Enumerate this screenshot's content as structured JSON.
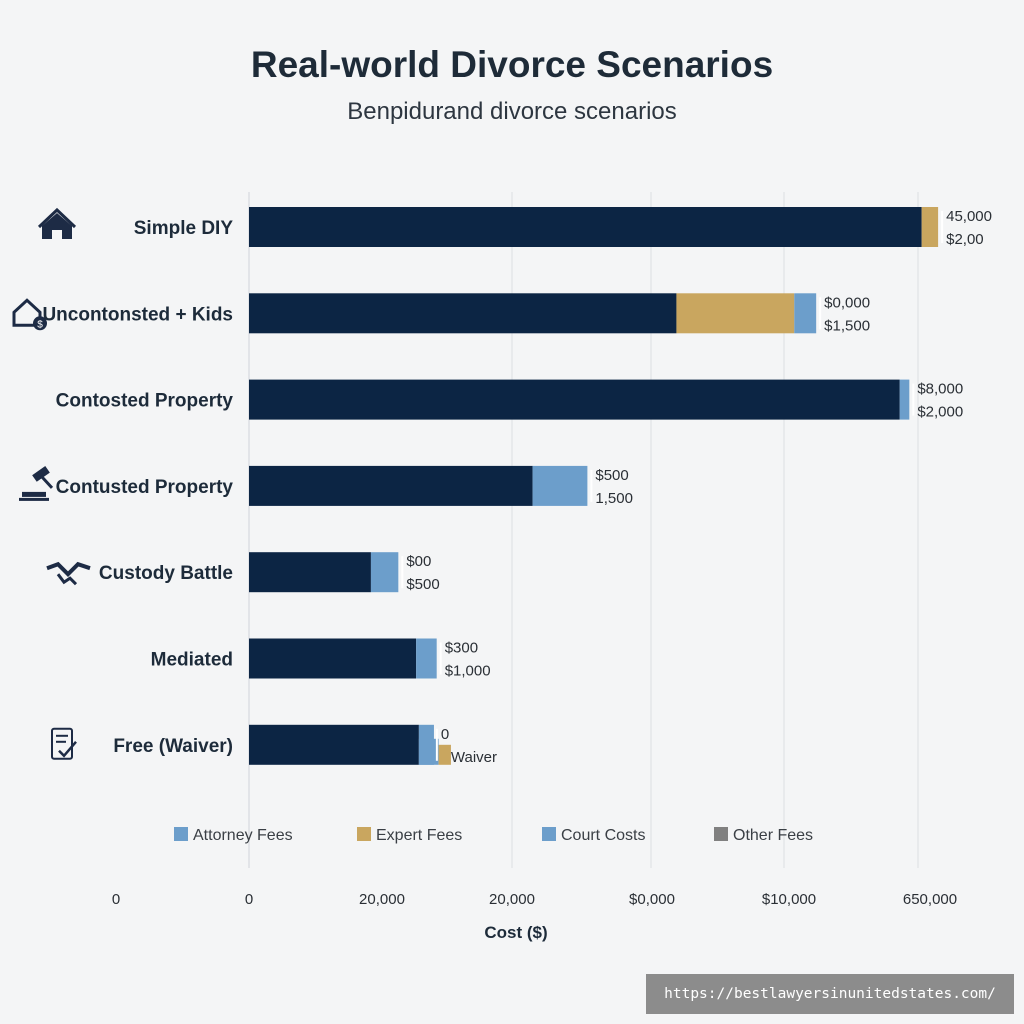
{
  "title": "Real-world Divorce Scenarios",
  "subtitle": "Benpidurand divorce scenarios",
  "watermark": "https://bestlawyersinunitedstates.com/",
  "colors": {
    "attorney": "#0c2544",
    "expert": "#c9a65f",
    "court": "#6c9ecb",
    "other": "#808080",
    "legend_attorney": "#6c9ecb",
    "grid": "#dcdfe3"
  },
  "chart_data": {
    "type": "bar",
    "orientation": "horizontal",
    "stacked": true,
    "title": "Real-world Divorce Scenarios",
    "subtitle": "Benpidurand divorce scenarios",
    "xlabel": "Cost ($)",
    "x_tick_labels": [
      "0",
      "0",
      "20,000",
      "20,000",
      "$0,000",
      "$10,000",
      "650,000"
    ],
    "xlim": [
      0,
      50000
    ],
    "legend_placement": "bottom",
    "legend": [
      "Attorney Fees",
      "Expert Fees",
      "Court Costs",
      "Other Fees"
    ],
    "categories": [
      "Simple DIY",
      "Uncontonsted + Kids",
      "Contosted Property",
      "Contusted Property",
      "Custody Battle",
      "Mediated",
      "Free (Waiver)"
    ],
    "icons": [
      "house-icon",
      "house-dollar-icon",
      "",
      "gavel-icon",
      "handshake-icon",
      "",
      "checklist-icon"
    ],
    "series": [
      {
        "name": "Attorney Fees",
        "key": "attorney",
        "values": [
          49100,
          31200,
          47500,
          20700,
          8900,
          12200,
          12400
        ]
      },
      {
        "name": "Expert Fees",
        "key": "expert",
        "values": [
          1200,
          8600,
          0,
          0,
          0,
          0,
          0
        ]
      },
      {
        "name": "Court Costs",
        "key": "court",
        "values": [
          0,
          1600,
          700,
          4000,
          2000,
          1500,
          1100
        ]
      },
      {
        "name": "Other Fees",
        "key": "other",
        "values": [
          0,
          0,
          0,
          0,
          0,
          0,
          0
        ]
      }
    ],
    "bar_annotations": [
      [
        "45,000",
        "$2,00"
      ],
      [
        "$0,000",
        "$1,500"
      ],
      [
        "$8,000",
        "$2,000"
      ],
      [
        "$500",
        "1,500"
      ],
      [
        "$00",
        "$500"
      ],
      [
        "$300",
        "$1,000"
      ],
      [
        "0",
        "Waiver"
      ]
    ],
    "free_waiver_extra": {
      "court": 900,
      "expert": 900
    }
  }
}
